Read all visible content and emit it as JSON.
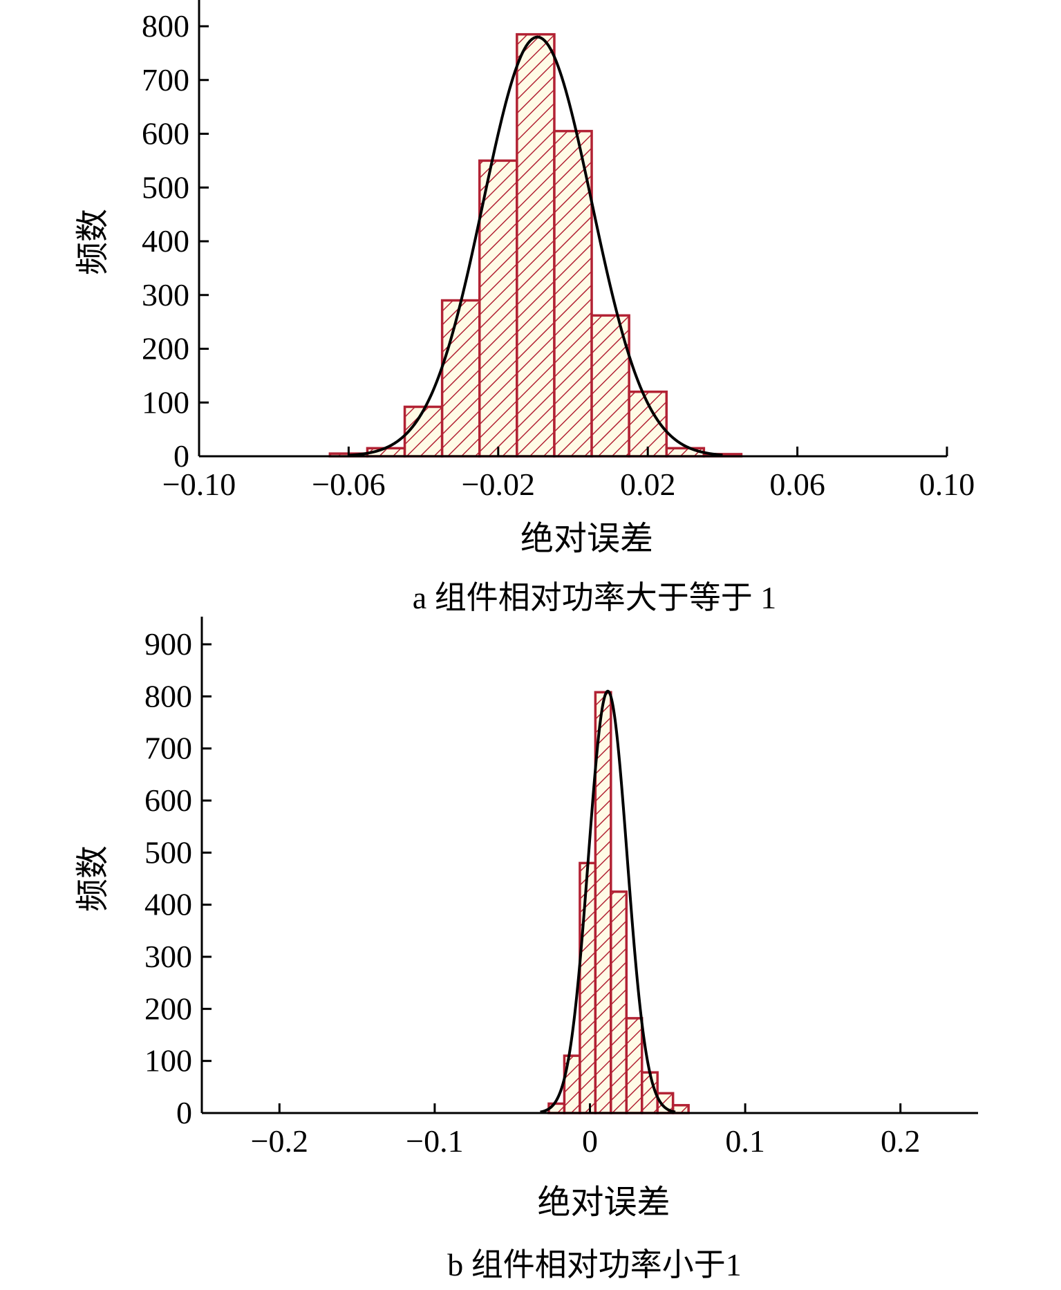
{
  "colors": {
    "bar_edge": "#b22234",
    "hatch": "#b22234",
    "bar_fill": "#fffbe6",
    "curve": "#000000"
  },
  "chart_data": [
    {
      "type": "bar",
      "title": "",
      "caption": "a  组件相对功率大于等于 1",
      "xlabel": "绝对误差",
      "ylabel": "频数",
      "xlim": [
        -0.1,
        0.1
      ],
      "ylim": [
        0,
        800
      ],
      "xticks": [
        -0.1,
        -0.06,
        -0.02,
        0.02,
        0.06,
        0.1
      ],
      "xtick_labels": [
        "−0.10",
        "−0.06",
        "−0.02",
        "0.02",
        "0.06",
        "0.10"
      ],
      "yticks": [
        0,
        100,
        200,
        300,
        400,
        500,
        600,
        700,
        800
      ],
      "ytick_labels": [
        "0",
        "100",
        "200",
        "300",
        "400",
        "500",
        "600",
        "700",
        "800"
      ],
      "bin_width": 0.01,
      "bins": [
        {
          "x0": -0.065,
          "x1": -0.055,
          "value": 5
        },
        {
          "x0": -0.055,
          "x1": -0.045,
          "value": 15
        },
        {
          "x0": -0.045,
          "x1": -0.035,
          "value": 92
        },
        {
          "x0": -0.035,
          "x1": -0.025,
          "value": 290
        },
        {
          "x0": -0.025,
          "x1": -0.015,
          "value": 550
        },
        {
          "x0": -0.015,
          "x1": -0.005,
          "value": 785
        },
        {
          "x0": -0.005,
          "x1": 0.005,
          "value": 605
        },
        {
          "x0": 0.005,
          "x1": 0.015,
          "value": 262
        },
        {
          "x0": 0.015,
          "x1": 0.025,
          "value": 120
        },
        {
          "x0": 0.025,
          "x1": 0.035,
          "value": 15
        },
        {
          "x0": 0.035,
          "x1": 0.045,
          "value": 4
        }
      ],
      "fit": {
        "type": "normal",
        "mean": -0.0095,
        "sd": 0.0145,
        "peak": 780,
        "x_range": [
          -0.06,
          0.04
        ]
      },
      "grid": false
    },
    {
      "type": "bar",
      "title": "",
      "caption": "b  组件相对功率小于1",
      "xlabel": "绝对误差",
      "ylabel": "频数",
      "xlim": [
        -0.25,
        0.25
      ],
      "ylim": [
        0,
        900
      ],
      "xticks": [
        -0.2,
        -0.1,
        0,
        0.1,
        0.2
      ],
      "xtick_labels": [
        "−0.2",
        "−0.1",
        "0",
        "0.1",
        "0.2"
      ],
      "yticks": [
        0,
        100,
        200,
        300,
        400,
        500,
        600,
        700,
        800,
        900
      ],
      "ytick_labels": [
        "0",
        "100",
        "200",
        "300",
        "400",
        "500",
        "600",
        "700",
        "800",
        "900"
      ],
      "bin_width": 0.01,
      "bins": [
        {
          "x0": -0.0265,
          "x1": -0.0165,
          "value": 18
        },
        {
          "x0": -0.0165,
          "x1": -0.0065,
          "value": 110
        },
        {
          "x0": -0.0065,
          "x1": 0.0035,
          "value": 480
        },
        {
          "x0": 0.0035,
          "x1": 0.0135,
          "value": 808
        },
        {
          "x0": 0.0135,
          "x1": 0.0235,
          "value": 425
        },
        {
          "x0": 0.0235,
          "x1": 0.0335,
          "value": 182
        },
        {
          "x0": 0.0335,
          "x1": 0.0435,
          "value": 78
        },
        {
          "x0": 0.0435,
          "x1": 0.0535,
          "value": 38
        },
        {
          "x0": 0.0535,
          "x1": 0.0635,
          "value": 15
        }
      ],
      "fit": {
        "type": "normal",
        "mean": 0.0115,
        "sd": 0.0125,
        "peak": 810,
        "x_range": [
          -0.032,
          0.055
        ]
      },
      "grid": false
    }
  ]
}
